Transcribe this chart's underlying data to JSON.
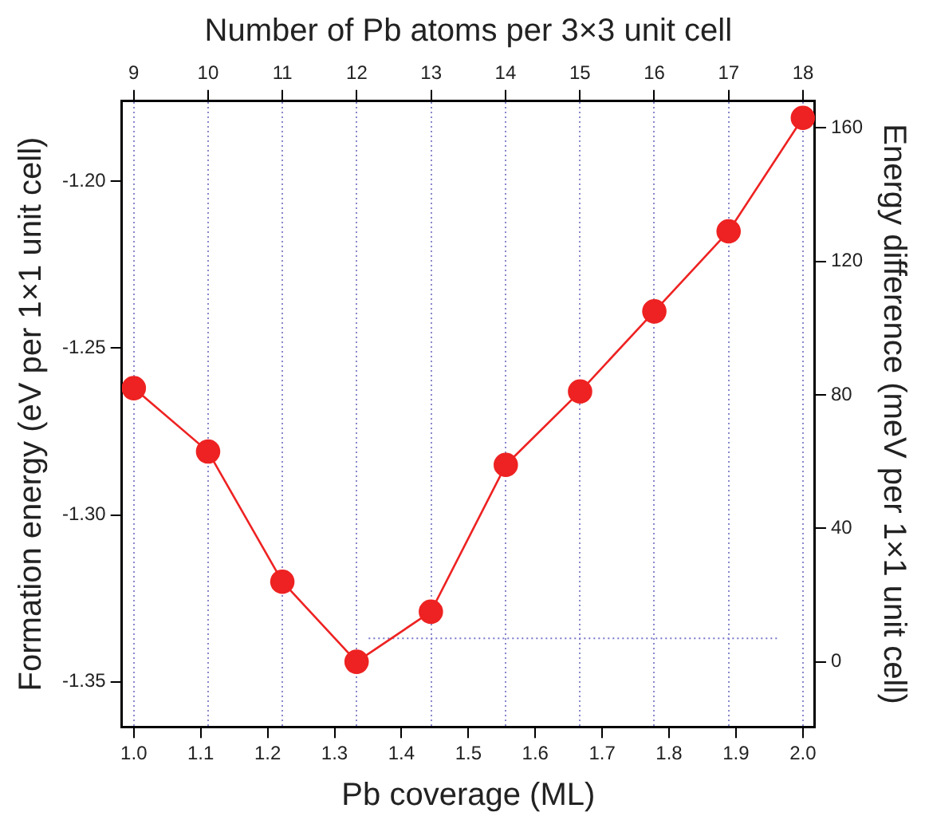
{
  "chart_data": {
    "type": "line",
    "xlabel": "Pb coverage (ML)",
    "x2label": "Number of Pb atoms per 3×3 unit cell",
    "ylabel": "Formation energy (eV per 1×1 unit cell)",
    "y2label": "Energy difference (meV per 1×1 unit cell)",
    "xlim": [
      0.982,
      2.018
    ],
    "xticks": [
      {
        "value": 1,
        "label": "1.0"
      },
      1.1,
      1.2,
      1.3,
      1.4,
      1.5,
      1.6,
      1.7,
      1.8,
      1.9,
      {
        "value": 2,
        "label": "2.0"
      }
    ],
    "x2lim": [
      8.84,
      18.16
    ],
    "x2ticks": [
      9,
      10,
      11,
      12,
      13,
      14,
      15,
      16,
      17,
      18
    ],
    "ylim": [
      -1.3635,
      -1.176
    ],
    "yticks": [
      {
        "value": -1.35,
        "label": "-1.35"
      },
      {
        "value": -1.3,
        "label": "-1.30"
      },
      {
        "value": -1.25,
        "label": "-1.25"
      },
      {
        "value": -1.2,
        "label": "-1.20"
      }
    ],
    "y2lim": [
      -19.5,
      168
    ],
    "y2ticks": [
      0,
      40,
      80,
      120,
      160
    ],
    "grid": "x",
    "legend": false,
    "series": [
      {
        "color": "#ee2222",
        "marker": "circle",
        "line_style": "solid",
        "x": [
          1.0,
          1.111,
          1.222,
          1.333,
          1.444,
          1.556,
          1.667,
          1.778,
          1.889,
          2.0
        ],
        "values": [
          -1.262,
          -1.281,
          -1.32,
          -1.344,
          -1.329,
          -1.285,
          -1.263,
          -1.239,
          -1.215,
          -1.181
        ]
      },
      {
        "color": "#7777cc",
        "marker": "none",
        "line_style": "dotted",
        "axis": "y2",
        "x": [
          1.351,
          1.965
        ],
        "values": [
          7,
          7
        ]
      }
    ]
  }
}
